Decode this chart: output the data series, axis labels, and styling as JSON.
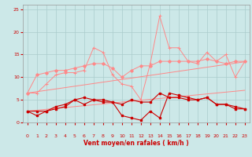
{
  "x": [
    0,
    1,
    2,
    3,
    4,
    5,
    6,
    7,
    8,
    9,
    10,
    11,
    12,
    13,
    14,
    15,
    16,
    17,
    18,
    19,
    20,
    21,
    22,
    23
  ],
  "line1_dark": [
    2.5,
    2.5,
    2.5,
    3.5,
    4.0,
    5.0,
    5.5,
    5.0,
    5.0,
    4.5,
    4.0,
    5.0,
    4.5,
    4.5,
    6.5,
    5.5,
    5.5,
    5.0,
    5.0,
    5.5,
    4.0,
    4.0,
    3.5,
    3.0
  ],
  "line2_dark": [
    2.5,
    1.5,
    2.5,
    3.0,
    3.5,
    5.0,
    4.0,
    5.0,
    4.5,
    4.5,
    1.5,
    1.0,
    0.5,
    2.5,
    1.0,
    6.5,
    6.0,
    5.5,
    5.0,
    5.5,
    4.0,
    4.0,
    3.0,
    3.0
  ],
  "line3_light_trend": [
    2.5,
    2.7,
    2.9,
    3.1,
    3.3,
    3.5,
    3.7,
    3.9,
    4.1,
    4.3,
    4.5,
    4.7,
    4.9,
    5.1,
    5.3,
    5.5,
    5.7,
    5.9,
    6.1,
    6.3,
    6.5,
    6.7,
    6.9,
    7.1
  ],
  "line4_light_trend": [
    6.5,
    6.8,
    7.1,
    7.4,
    7.7,
    8.0,
    8.3,
    8.6,
    8.9,
    9.2,
    9.5,
    9.8,
    10.1,
    10.4,
    10.7,
    11.0,
    11.3,
    11.6,
    11.9,
    12.2,
    12.5,
    12.8,
    13.1,
    13.4
  ],
  "line5_light": [
    6.5,
    6.5,
    8.5,
    10.5,
    11.0,
    11.0,
    11.5,
    16.5,
    15.5,
    10.5,
    8.5,
    8.0,
    5.0,
    13.0,
    23.5,
    16.5,
    16.5,
    13.5,
    13.0,
    15.5,
    13.5,
    15.0,
    10.0,
    13.5
  ],
  "line6_light": [
    6.5,
    10.5,
    11.0,
    11.5,
    11.5,
    12.0,
    12.5,
    13.0,
    13.0,
    12.0,
    10.0,
    11.5,
    12.5,
    12.5,
    13.5,
    13.5,
    13.5,
    13.5,
    13.5,
    14.0,
    13.5,
    13.0,
    13.5,
    13.5
  ],
  "bg_color": "#cce8e8",
  "grid_color": "#aacccc",
  "color_light": "#ff8888",
  "color_dark": "#cc0000",
  "xlabel": "Vent moyen/en rafales ( km/h )",
  "ylim": [
    0,
    26
  ],
  "xlim": [
    -0.5,
    23.5
  ],
  "yticks": [
    0,
    5,
    10,
    15,
    20,
    25
  ],
  "xticks": [
    0,
    1,
    2,
    3,
    4,
    5,
    6,
    7,
    8,
    9,
    10,
    11,
    12,
    13,
    14,
    15,
    16,
    17,
    18,
    19,
    20,
    21,
    22,
    23
  ],
  "arrows": [
    "↑",
    "↓",
    "↖",
    "↑",
    "↑",
    "↑",
    "↑",
    "↑",
    "↑",
    "↗",
    "→",
    "↓",
    "↓",
    "↘",
    "↘",
    "↓",
    "↓",
    "↘",
    "↘",
    "↘",
    "↘",
    "↘",
    "↘",
    "↘"
  ]
}
